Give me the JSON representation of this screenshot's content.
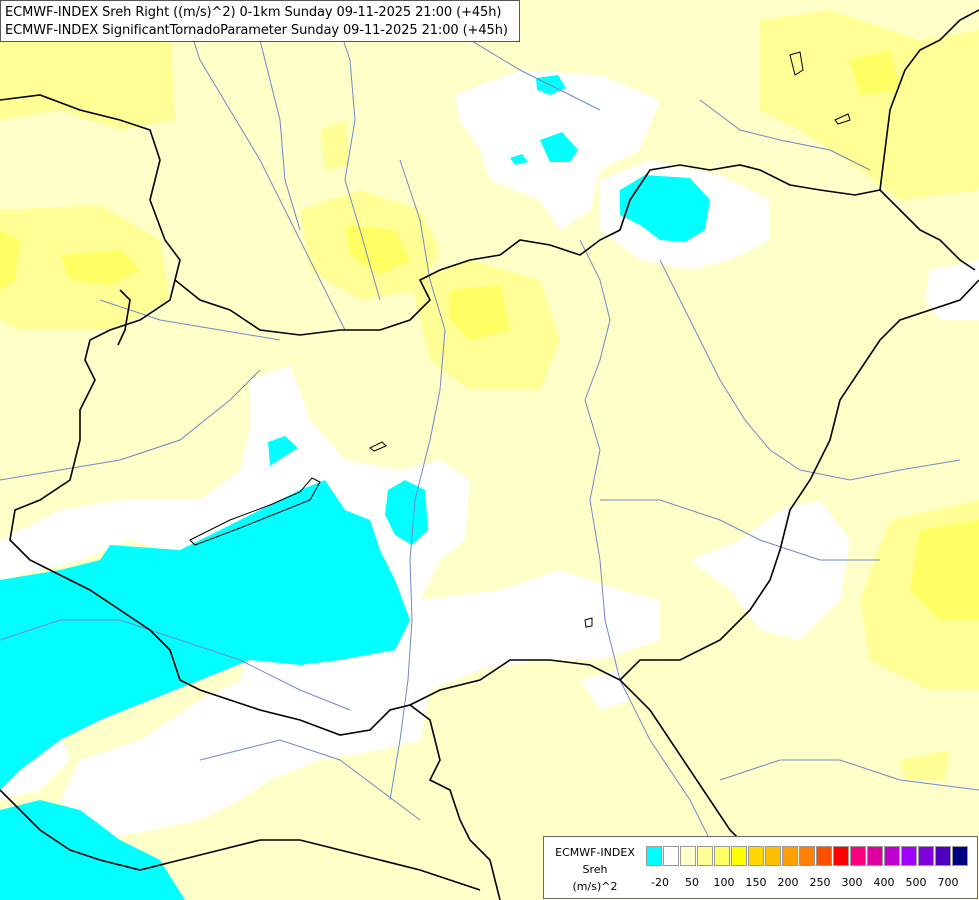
{
  "header": {
    "line1": "ECMWF-INDEX Sreh Right ((m/s)^2) 0-1km Sunday 09-11-2025 21:00 (+45h)",
    "line2": "ECMWF-INDEX SignificantTornadoParameter Sunday 09-11-2025 21:00 (+45h)"
  },
  "legend": {
    "source": "ECMWF-INDEX",
    "variable": "Sreh",
    "unit": "(m/s)^2",
    "swatch_colors": [
      "#00ffff",
      "#ffffff",
      "#ffffc8",
      "#ffff96",
      "#ffff64",
      "#ffff00",
      "#ffd700",
      "#ffbf00",
      "#ffa000",
      "#ff8000",
      "#ff5000",
      "#ff0000",
      "#ff0080",
      "#e000a0",
      "#c000d0",
      "#a000ff",
      "#8000e0",
      "#5000c0",
      "#000080"
    ],
    "ticks": [
      "-20",
      "50",
      "100",
      "150",
      "200",
      "250",
      "300",
      "400",
      "500",
      "700"
    ]
  },
  "map": {
    "colors": {
      "background": "#ffffc8",
      "band_light_yellow": "#ffff96",
      "band_yellow": "#ffff64",
      "band_white": "#ffffff",
      "band_cyan": "#00ffff",
      "border": "#000000",
      "river": "#6e8ac8"
    }
  }
}
